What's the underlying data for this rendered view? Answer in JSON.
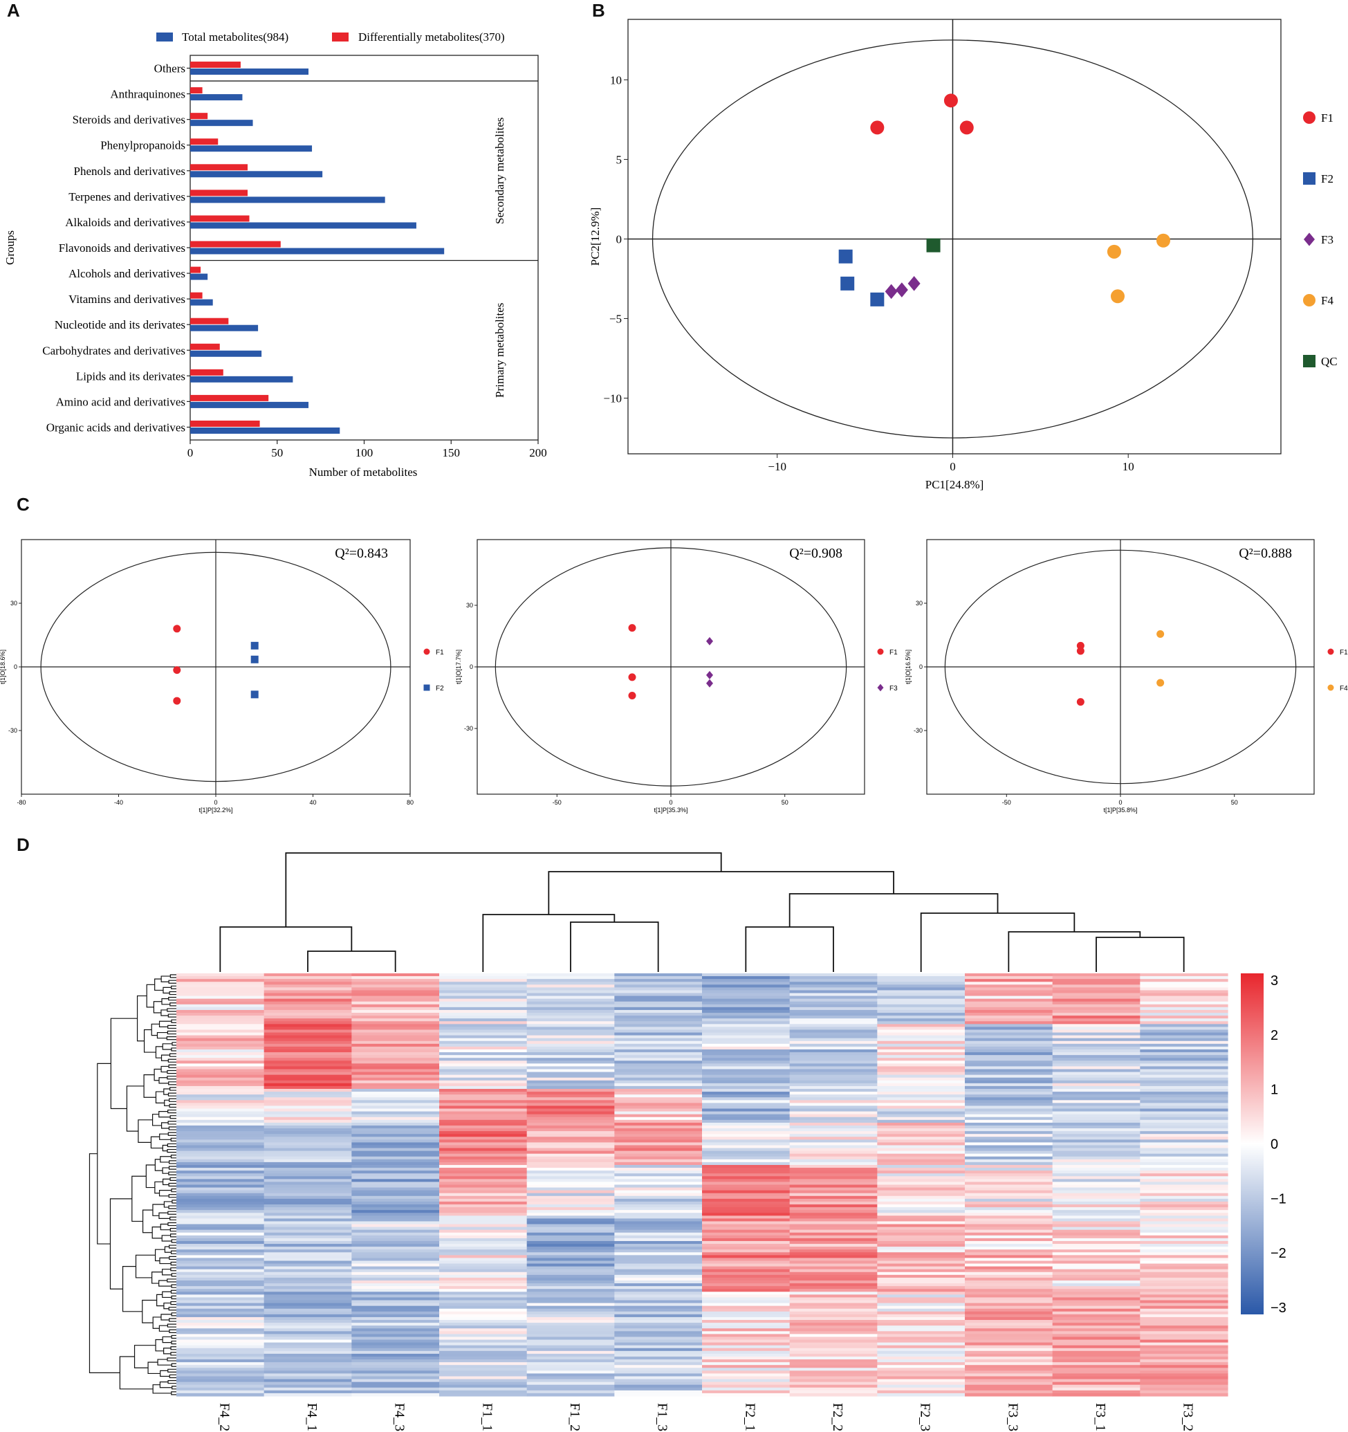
{
  "panel_labels": {
    "a": "A",
    "b": "B",
    "c": "C",
    "d": "D"
  },
  "chart_data": [
    {
      "panel": "A",
      "type": "bar",
      "orientation": "horizontal",
      "xlabel": "Number of metabolites",
      "ylabel": "Groups",
      "xlim": [
        0,
        200
      ],
      "xticks": [
        0,
        50,
        100,
        150,
        200
      ],
      "legend": {
        "position": "top",
        "entries": [
          "Total metabolites(984)",
          "Differentially metabolites(370)"
        ]
      },
      "group_labels": {
        "secondary": "Secondary metabolites",
        "primary": "Primary metabolites"
      },
      "colors": {
        "total": "#2a58a8",
        "diff": "#e8262d"
      },
      "categories": [
        "Others",
        "Anthraquinones",
        "Steroids and derivatives",
        "Phenylpropanoids",
        "Phenols and derivatives",
        "Terpenes and derivatives",
        "Alkaloids and derivatives",
        "Flavonoids and derivatives",
        "Alcohols and derivatives",
        "Vitamins and derivatives",
        "Nucleotide and its derivates",
        "Carbohydrates and derivatives",
        "Lipids and its derivates",
        "Amino acid and derivatives",
        "Organic acids and derivatives"
      ],
      "series": [
        {
          "name": "Total metabolites(984)",
          "values": [
            68,
            30,
            36,
            70,
            76,
            112,
            130,
            146,
            10,
            13,
            39,
            41,
            59,
            68,
            86
          ]
        },
        {
          "name": "Differentially metabolites(370)",
          "values": [
            29,
            7,
            10,
            16,
            33,
            33,
            34,
            52,
            6,
            7,
            22,
            17,
            19,
            45,
            40
          ]
        }
      ]
    },
    {
      "panel": "B",
      "type": "scatter",
      "xlabel": "PC1[24.8%]",
      "ylabel": "PC2[12.9%]",
      "xlim": [
        -18.5,
        18.7
      ],
      "ylim": [
        -13.5,
        13.8
      ],
      "xticks": [
        -10,
        0,
        10
      ],
      "yticks": [
        10,
        5,
        0,
        -5,
        -10
      ],
      "ellipse": {
        "rx": 17.1,
        "ry": 12.5
      },
      "series": [
        {
          "name": "F1",
          "shape": "circle",
          "color": "#e8262d",
          "points": [
            [
              -4.3,
              7.0
            ],
            [
              -0.1,
              8.7
            ],
            [
              0.8,
              7.0
            ]
          ]
        },
        {
          "name": "F2",
          "shape": "square",
          "color": "#2a58a8",
          "points": [
            [
              -6.1,
              -1.1
            ],
            [
              -6.0,
              -2.8
            ],
            [
              -4.3,
              -3.8
            ]
          ]
        },
        {
          "name": "F3",
          "shape": "diamond",
          "color": "#7a2d8c",
          "points": [
            [
              -3.5,
              -3.3
            ],
            [
              -2.9,
              -3.2
            ],
            [
              -2.2,
              -2.8
            ]
          ]
        },
        {
          "name": "F4",
          "shape": "circle",
          "color": "#f5a030",
          "points": [
            [
              9.2,
              -0.8
            ],
            [
              12.0,
              -0.1
            ],
            [
              9.4,
              -3.6
            ]
          ]
        },
        {
          "name": "QC",
          "shape": "square",
          "color": "#1f5a2e",
          "points": [
            [
              -1.1,
              -0.4
            ]
          ]
        }
      ]
    },
    {
      "panel": "C1",
      "type": "scatter",
      "q2": "Q²=0.843",
      "xlabel": "t[1]P[32.2%]",
      "ylabel": "t[1]O[18.6%]",
      "xlim": [
        -80,
        80
      ],
      "ylim": [
        -60,
        60
      ],
      "xticks": [
        -80,
        -40,
        0,
        40,
        80
      ],
      "yticks": [
        30,
        0,
        -30
      ],
      "ellipse": {
        "rx": 72,
        "ry": 54
      },
      "series": [
        {
          "name": "F1",
          "shape": "circle",
          "color": "#e8262d",
          "points": [
            [
              -16,
              18
            ],
            [
              -16,
              -1.5
            ],
            [
              -16,
              -16
            ]
          ]
        },
        {
          "name": "F2",
          "shape": "square",
          "color": "#2a58a8",
          "points": [
            [
              16,
              10
            ],
            [
              16,
              3.5
            ],
            [
              16,
              -13
            ]
          ]
        }
      ]
    },
    {
      "panel": "C2",
      "type": "scatter",
      "q2": "Q²=0.908",
      "xlabel": "t[1]P[35.3%]",
      "ylabel": "t[1]O[17.7%]",
      "xlim": [
        -85,
        85
      ],
      "ylim": [
        -62,
        62
      ],
      "xticks": [
        -50,
        0,
        50
      ],
      "yticks": [
        30,
        0,
        -30
      ],
      "ellipse": {
        "rx": 77,
        "ry": 58
      },
      "series": [
        {
          "name": "F1",
          "shape": "circle",
          "color": "#e8262d",
          "points": [
            [
              -17,
              19
            ],
            [
              -17,
              -5
            ],
            [
              -17,
              -14
            ]
          ]
        },
        {
          "name": "F3",
          "shape": "diamond",
          "color": "#7a2d8c",
          "points": [
            [
              17,
              12.5
            ],
            [
              17,
              -4
            ],
            [
              17,
              -8
            ]
          ]
        }
      ]
    },
    {
      "panel": "C3",
      "type": "scatter",
      "q2": "Q²=0.888",
      "xlabel": "t[1]P[35.8%]",
      "ylabel": "t[1]O[16.5%]",
      "xlim": [
        -85,
        85
      ],
      "ylim": [
        -60,
        60
      ],
      "xticks": [
        -50,
        0,
        50
      ],
      "yticks": [
        30,
        0,
        -30
      ],
      "ellipse": {
        "rx": 77,
        "ry": 55
      },
      "series": [
        {
          "name": "F1",
          "shape": "circle",
          "color": "#e8262d",
          "points": [
            [
              -17.5,
              10
            ],
            [
              -17.5,
              7.5
            ],
            [
              -17.5,
              -16.5
            ]
          ]
        },
        {
          "name": "F4",
          "shape": "circle",
          "color": "#f5a030",
          "points": [
            [
              17.5,
              15.5
            ],
            [
              17.5,
              -7.5
            ]
          ]
        }
      ]
    },
    {
      "panel": "D",
      "type": "heatmap",
      "columns": [
        "F4_2",
        "F4_1",
        "F4_3",
        "F1_1",
        "F1_2",
        "F1_3",
        "F2_1",
        "F2_2",
        "F2_3",
        "F3_3",
        "F3_1",
        "F3_2"
      ],
      "colorbar": {
        "min": -3,
        "max": 3,
        "ticks": [
          "3",
          "2",
          "1",
          "0",
          "−1",
          "−2",
          "−3"
        ],
        "colors": [
          "#2a58a8",
          "#ffffff",
          "#e8262d"
        ]
      },
      "rows_clustered": true,
      "columns_clustered": true
    }
  ]
}
